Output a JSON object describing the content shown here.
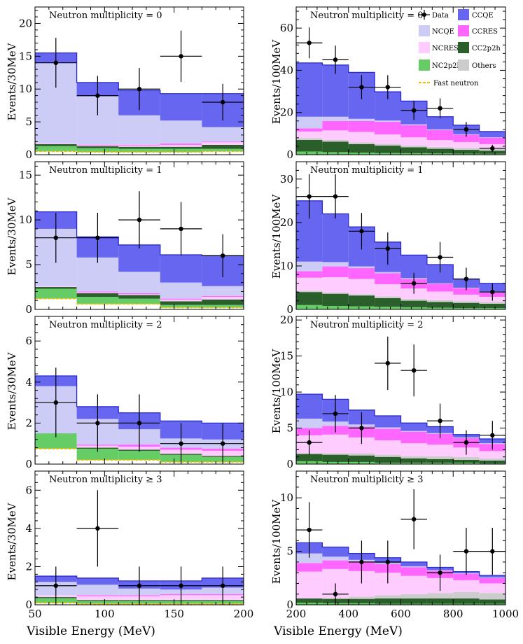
{
  "colors": {
    "CCQE": "#6666f0",
    "NCQE": "#ccccf7",
    "CCRES": "#ff66ff",
    "NCRES": "#ffccff",
    "CC2p2h": "#2a5e2a",
    "NC2p2h": "#66cc66",
    "Others": "#cccccc",
    "Fast neutron": "#f0c000",
    "Data": "#000000"
  },
  "legend": {
    "data": "Data",
    "ccqe": "CCQE",
    "ncqe": "NCQE",
    "ccres": "CCRES",
    "nres": "NCRES",
    "cc2p2h": "CC2p2h",
    "nc2p2h": "NC2p2h",
    "others": "Others",
    "fastn": "Fast neutron"
  },
  "axes": {
    "xlabel": "Visible Energy (MeV)",
    "ylabel_left": "Events/30MeV",
    "ylabel_right": "Events/100MeV"
  },
  "chart_data": [
    {
      "type": "bar",
      "title": "Neutron multiplicity = 0",
      "xlabel": "Visible Energy (MeV)",
      "ylabel": "Events/30MeV",
      "xlim": [
        50,
        200
      ],
      "ylim": [
        0,
        22.5
      ],
      "xticks": [
        50,
        100,
        150,
        200
      ],
      "yticks": [
        0,
        5,
        10,
        15,
        20
      ],
      "bin_edges": [
        50,
        80,
        110,
        140,
        170,
        200
      ],
      "stack": {
        "Fast neutron": [
          0.5,
          0.4,
          0.4,
          0.4,
          0.5
        ],
        "NC2p2h": [
          0.8,
          0.6,
          0.5,
          0.5,
          0.4
        ],
        "CC2p2h": [
          0.3,
          0.3,
          0.3,
          0.3,
          0.6
        ],
        "Others": [
          0.0,
          0.0,
          0.0,
          0.0,
          0.0
        ],
        "NCRES": [
          0.1,
          0.1,
          0.2,
          0.3,
          0.4
        ],
        "CCRES": [
          0.0,
          0.1,
          0.1,
          0.2,
          0.1
        ],
        "NCQE": [
          12.3,
          7.4,
          4.5,
          3.5,
          2.2
        ],
        "CCQE": [
          1.5,
          2.1,
          3.8,
          4.1,
          5.1
        ]
      },
      "data": {
        "x": [
          65,
          95,
          125,
          155,
          185
        ],
        "y": [
          14,
          9,
          10,
          15,
          8
        ],
        "err_lo": [
          3.8,
          3.0,
          3.2,
          3.9,
          2.8
        ],
        "err_hi": [
          3.8,
          3.0,
          3.2,
          3.9,
          2.8
        ],
        "xerr": 15
      }
    },
    {
      "type": "bar",
      "title": "Neutron multiplicity = 0",
      "xlabel": "Visible Energy (MeV)",
      "ylabel": "Events/100MeV",
      "xlim": [
        200,
        1000
      ],
      "ylim": [
        0,
        70
      ],
      "xticks": [
        200,
        400,
        600,
        800,
        1000
      ],
      "yticks": [
        0,
        20,
        40,
        60
      ],
      "bin_edges": [
        200,
        300,
        400,
        500,
        600,
        700,
        800,
        900,
        1000
      ],
      "stack": {
        "Fast neutron": [
          0.0,
          0.0,
          0.0,
          0.0,
          0.0,
          0.0,
          0.0,
          0.0
        ],
        "NC2p2h": [
          1.5,
          1.2,
          1.0,
          0.8,
          0.7,
          0.6,
          0.5,
          0.4
        ],
        "CC2p2h": [
          5.5,
          5.0,
          4.0,
          3.5,
          2.8,
          2.2,
          1.8,
          1.5
        ],
        "Others": [
          0.8,
          0.8,
          0.8,
          0.8,
          0.9,
          0.9,
          0.9,
          0.9
        ],
        "NCRES": [
          3.2,
          4.5,
          5.0,
          4.5,
          3.8,
          3.2,
          2.8,
          2.2
        ],
        "CCRES": [
          1.5,
          4.5,
          5.2,
          6.0,
          5.8,
          4.8,
          3.5,
          3.0
        ],
        "NCQE": [
          5.5,
          2.0,
          1.0,
          0.6,
          0.4,
          0.3,
          0.2,
          0.2
        ],
        "CCQE": [
          25.5,
          24.5,
          22.0,
          13.6,
          11.0,
          6.0,
          4.3,
          2.8
        ]
      },
      "data": {
        "x": [
          250,
          350,
          450,
          550,
          650,
          750,
          850,
          950
        ],
        "y": [
          53,
          45,
          32,
          32,
          21,
          22,
          12,
          3
        ],
        "err_lo": [
          7.3,
          6.7,
          5.7,
          5.7,
          4.6,
          4.7,
          3.5,
          1.7
        ],
        "err_hi": [
          7.3,
          6.7,
          5.7,
          5.7,
          4.6,
          4.7,
          3.5,
          1.7
        ],
        "xerr": 50
      }
    },
    {
      "type": "bar",
      "title": "Neutron multiplicity = 1",
      "xlabel": "Visible Energy (MeV)",
      "ylabel": "Events/30MeV",
      "xlim": [
        50,
        200
      ],
      "ylim": [
        0,
        16.5
      ],
      "xticks": [
        50,
        100,
        150,
        200
      ],
      "yticks": [
        0,
        5,
        10,
        15
      ],
      "bin_edges": [
        50,
        80,
        110,
        140,
        170,
        200
      ],
      "stack": {
        "Fast neutron": [
          1.2,
          0.6,
          0.6,
          0.2,
          0.2
        ],
        "NC2p2h": [
          1.1,
          0.8,
          0.6,
          0.3,
          0.3
        ],
        "CC2p2h": [
          0.2,
          0.4,
          0.4,
          0.4,
          0.6
        ],
        "Others": [
          0.0,
          0.0,
          0.0,
          0.0,
          0.0
        ],
        "NCRES": [
          0.1,
          0.1,
          0.1,
          0.2,
          0.3
        ],
        "CCRES": [
          0.0,
          0.1,
          0.1,
          0.1,
          0.1
        ],
        "NCQE": [
          6.4,
          3.8,
          2.4,
          1.8,
          1.1
        ],
        "CCQE": [
          1.9,
          2.3,
          3.0,
          3.1,
          3.4
        ]
      },
      "data": {
        "x": [
          65,
          95,
          125,
          155,
          185
        ],
        "y": [
          8,
          8,
          10,
          9,
          6
        ],
        "err_lo": [
          2.8,
          2.8,
          3.2,
          3.0,
          2.4
        ],
        "err_hi": [
          2.8,
          2.8,
          3.2,
          3.0,
          2.4
        ],
        "xerr": 15
      }
    },
    {
      "type": "bar",
      "title": "Neutron multiplicity = 1",
      "xlabel": "Visible Energy (MeV)",
      "ylabel": "Events/100MeV",
      "xlim": [
        200,
        1000
      ],
      "ylim": [
        0,
        34
      ],
      "xticks": [
        200,
        400,
        600,
        800,
        1000
      ],
      "yticks": [
        0,
        10,
        20,
        30
      ],
      "bin_edges": [
        200,
        300,
        400,
        500,
        600,
        700,
        800,
        900,
        1000
      ],
      "stack": {
        "Fast neutron": [
          0.0,
          0.0,
          0.0,
          0.0,
          0.0,
          0.0,
          0.0,
          0.0
        ],
        "NC2p2h": [
          1.0,
          0.8,
          0.7,
          0.6,
          0.5,
          0.4,
          0.3,
          0.3
        ],
        "CC2p2h": [
          3.0,
          2.8,
          2.5,
          2.0,
          1.5,
          1.3,
          1.2,
          1.0
        ],
        "Others": [
          0.3,
          0.3,
          0.3,
          0.4,
          0.4,
          0.4,
          0.4,
          0.4
        ],
        "NCRES": [
          3.0,
          3.5,
          3.5,
          2.8,
          2.4,
          2.0,
          1.5,
          1.2
        ],
        "CCRES": [
          1.5,
          2.5,
          2.5,
          2.5,
          2.2,
          1.8,
          1.5,
          1.0
        ],
        "NCQE": [
          2.2,
          1.0,
          0.4,
          0.3,
          0.2,
          0.1,
          0.1,
          0.1
        ],
        "CCQE": [
          14.0,
          11.1,
          9.1,
          6.9,
          5.3,
          4.3,
          2.0,
          2.0
        ]
      },
      "data": {
        "x": [
          250,
          350,
          450,
          550,
          650,
          750,
          850,
          950
        ],
        "y": [
          26,
          26,
          18,
          14,
          6,
          12,
          7,
          4
        ],
        "err_lo": [
          5.1,
          5.1,
          4.2,
          3.7,
          2.4,
          3.5,
          2.6,
          2.0
        ],
        "err_hi": [
          5.1,
          5.1,
          4.2,
          3.7,
          2.4,
          3.5,
          2.6,
          2.0
        ],
        "xerr": 50
      }
    },
    {
      "type": "bar",
      "title": "Neutron multiplicity = 2",
      "xlabel": "Visible Energy (MeV)",
      "ylabel": "Events/30MeV",
      "xlim": [
        50,
        200
      ],
      "ylim": [
        0,
        7.2
      ],
      "xticks": [
        50,
        100,
        150,
        200
      ],
      "yticks": [
        0,
        2,
        4,
        6
      ],
      "bin_edges": [
        50,
        80,
        110,
        140,
        170,
        200
      ],
      "stack": {
        "Fast neutron": [
          0.75,
          0.2,
          0.2,
          0.1,
          0.1
        ],
        "NC2p2h": [
          0.75,
          0.55,
          0.45,
          0.35,
          0.25
        ],
        "CC2p2h": [
          0.0,
          0.05,
          0.05,
          0.05,
          0.05
        ],
        "Others": [
          0.0,
          0.0,
          0.0,
          0.0,
          0.0
        ],
        "NCRES": [
          0.0,
          0.1,
          0.15,
          0.2,
          0.25
        ],
        "CCRES": [
          0.0,
          0.05,
          0.1,
          0.1,
          0.1
        ],
        "NCQE": [
          2.3,
          1.25,
          0.75,
          0.45,
          0.45
        ],
        "CCQE": [
          0.5,
          0.6,
          0.8,
          0.85,
          0.8
        ]
      },
      "data": {
        "x": [
          65,
          95,
          125,
          155,
          185
        ],
        "y": [
          3,
          2,
          2,
          1,
          1
        ],
        "err_lo": [
          1.7,
          1.4,
          1.4,
          1.0,
          1.0
        ],
        "err_hi": [
          1.7,
          1.4,
          1.4,
          1.0,
          1.0
        ],
        "xerr": 15
      }
    },
    {
      "type": "bar",
      "title": "Neutron multiplicity = 2",
      "xlabel": "Visible Energy (MeV)",
      "ylabel": "Events/100MeV",
      "xlim": [
        200,
        1000
      ],
      "ylim": [
        0,
        20.5
      ],
      "xticks": [
        200,
        400,
        600,
        800,
        1000
      ],
      "yticks": [
        0,
        5,
        10,
        15,
        20
      ],
      "bin_edges": [
        200,
        300,
        400,
        500,
        600,
        700,
        800,
        900,
        1000
      ],
      "stack": {
        "Fast neutron": [
          0.0,
          0.0,
          0.0,
          0.0,
          0.0,
          0.0,
          0.0,
          0.0
        ],
        "NC2p2h": [
          0.4,
          0.3,
          0.3,
          0.2,
          0.2,
          0.2,
          0.2,
          0.1
        ],
        "CC2p2h": [
          1.0,
          1.0,
          0.9,
          0.8,
          0.6,
          0.5,
          0.4,
          0.4
        ],
        "Others": [
          0.1,
          0.2,
          0.3,
          0.3,
          0.3,
          0.4,
          0.4,
          0.3
        ],
        "NCRES": [
          2.5,
          2.6,
          2.2,
          2.0,
          1.8,
          1.6,
          1.3,
          1.0
        ],
        "CCRES": [
          1.0,
          1.2,
          1.5,
          1.6,
          1.6,
          1.5,
          1.3,
          1.0
        ],
        "NCQE": [
          1.3,
          0.6,
          0.3,
          0.2,
          0.1,
          0.1,
          0.1,
          0.1
        ],
        "CCQE": [
          3.4,
          3.1,
          2.0,
          1.6,
          1.1,
          0.9,
          0.4,
          0.6
        ]
      },
      "data": {
        "x": [
          250,
          350,
          450,
          550,
          650,
          750,
          850,
          950
        ],
        "y": [
          3,
          7,
          5,
          14,
          13,
          6,
          3,
          4
        ],
        "err_lo": [
          1.7,
          2.6,
          2.2,
          3.7,
          3.6,
          2.4,
          1.7,
          2.0
        ],
        "err_hi": [
          1.7,
          2.6,
          2.2,
          3.7,
          3.6,
          2.4,
          1.7,
          2.0
        ],
        "xerr": 50
      }
    },
    {
      "type": "bar",
      "title": "Neutron multiplicity ≥ 3",
      "xlabel": "Visible Energy (MeV)",
      "ylabel": "Events/30MeV",
      "xlim": [
        50,
        200
      ],
      "ylim": [
        0,
        7
      ],
      "xticks": [
        50,
        100,
        150,
        200
      ],
      "yticks": [
        0,
        2,
        4,
        6
      ],
      "bin_edges": [
        50,
        80,
        110,
        140,
        170,
        200
      ],
      "stack": {
        "Fast neutron": [
          0.1,
          0.05,
          0.05,
          0.05,
          0.05
        ],
        "NC2p2h": [
          0.25,
          0.15,
          0.15,
          0.15,
          0.15
        ],
        "CC2p2h": [
          0.05,
          0.05,
          0.05,
          0.05,
          0.05
        ],
        "Others": [
          0.0,
          0.0,
          0.0,
          0.0,
          0.0
        ],
        "NCRES": [
          0.1,
          0.2,
          0.2,
          0.25,
          0.25
        ],
        "CCRES": [
          0.0,
          0.05,
          0.05,
          0.05,
          0.05
        ],
        "NCQE": [
          0.7,
          0.55,
          0.35,
          0.25,
          0.35
        ],
        "CCQE": [
          0.3,
          0.35,
          0.4,
          0.45,
          0.5
        ]
      },
      "data": {
        "x": [
          65,
          95,
          125,
          155,
          185
        ],
        "y": [
          1,
          4,
          1,
          1,
          1
        ],
        "err_lo": [
          1.0,
          2.0,
          1.0,
          1.0,
          1.0
        ],
        "err_hi": [
          1.0,
          2.0,
          1.0,
          1.0,
          1.0
        ],
        "xerr": 15
      }
    },
    {
      "type": "bar",
      "title": "Neutron multiplicity ≥ 3",
      "xlabel": "Visible Energy (MeV)",
      "ylabel": "Events/100MeV",
      "xlim": [
        200,
        1000
      ],
      "ylim": [
        0,
        12.5
      ],
      "xticks": [
        200,
        400,
        600,
        800,
        1000
      ],
      "yticks": [
        0,
        5,
        10
      ],
      "bin_edges": [
        200,
        300,
        400,
        500,
        600,
        700,
        800,
        900,
        1000
      ],
      "stack": {
        "Fast neutron": [
          0.0,
          0.0,
          0.0,
          0.0,
          0.0,
          0.0,
          0.0,
          0.0
        ],
        "NC2p2h": [
          0.2,
          0.15,
          0.15,
          0.1,
          0.1,
          0.1,
          0.1,
          0.1
        ],
        "CC2p2h": [
          0.4,
          0.4,
          0.4,
          0.5,
          0.5,
          0.5,
          0.5,
          0.4
        ],
        "Others": [
          0.0,
          0.1,
          0.2,
          0.3,
          0.4,
          0.5,
          0.6,
          0.6
        ],
        "NCRES": [
          2.5,
          2.7,
          2.4,
          2.1,
          1.7,
          1.4,
          1.1,
          0.9
        ],
        "CCRES": [
          0.8,
          0.8,
          0.9,
          0.8,
          0.8,
          0.7,
          0.6,
          0.5
        ],
        "NCQE": [
          0.9,
          0.35,
          0.15,
          0.1,
          0.1,
          0.05,
          0.05,
          0.05
        ],
        "CCQE": [
          1.0,
          0.9,
          0.6,
          0.5,
          0.4,
          0.25,
          0.15,
          0.2
        ]
      },
      "data": {
        "x": [
          250,
          350,
          450,
          550,
          650,
          750,
          850,
          950
        ],
        "y": [
          7,
          1,
          4,
          4,
          8,
          3,
          5,
          5
        ],
        "err_lo": [
          2.6,
          1.0,
          2.0,
          2.0,
          2.8,
          1.7,
          2.2,
          2.2
        ],
        "err_hi": [
          2.6,
          1.0,
          2.0,
          2.0,
          2.8,
          1.7,
          2.2,
          2.2
        ],
        "xerr": 50
      }
    }
  ]
}
